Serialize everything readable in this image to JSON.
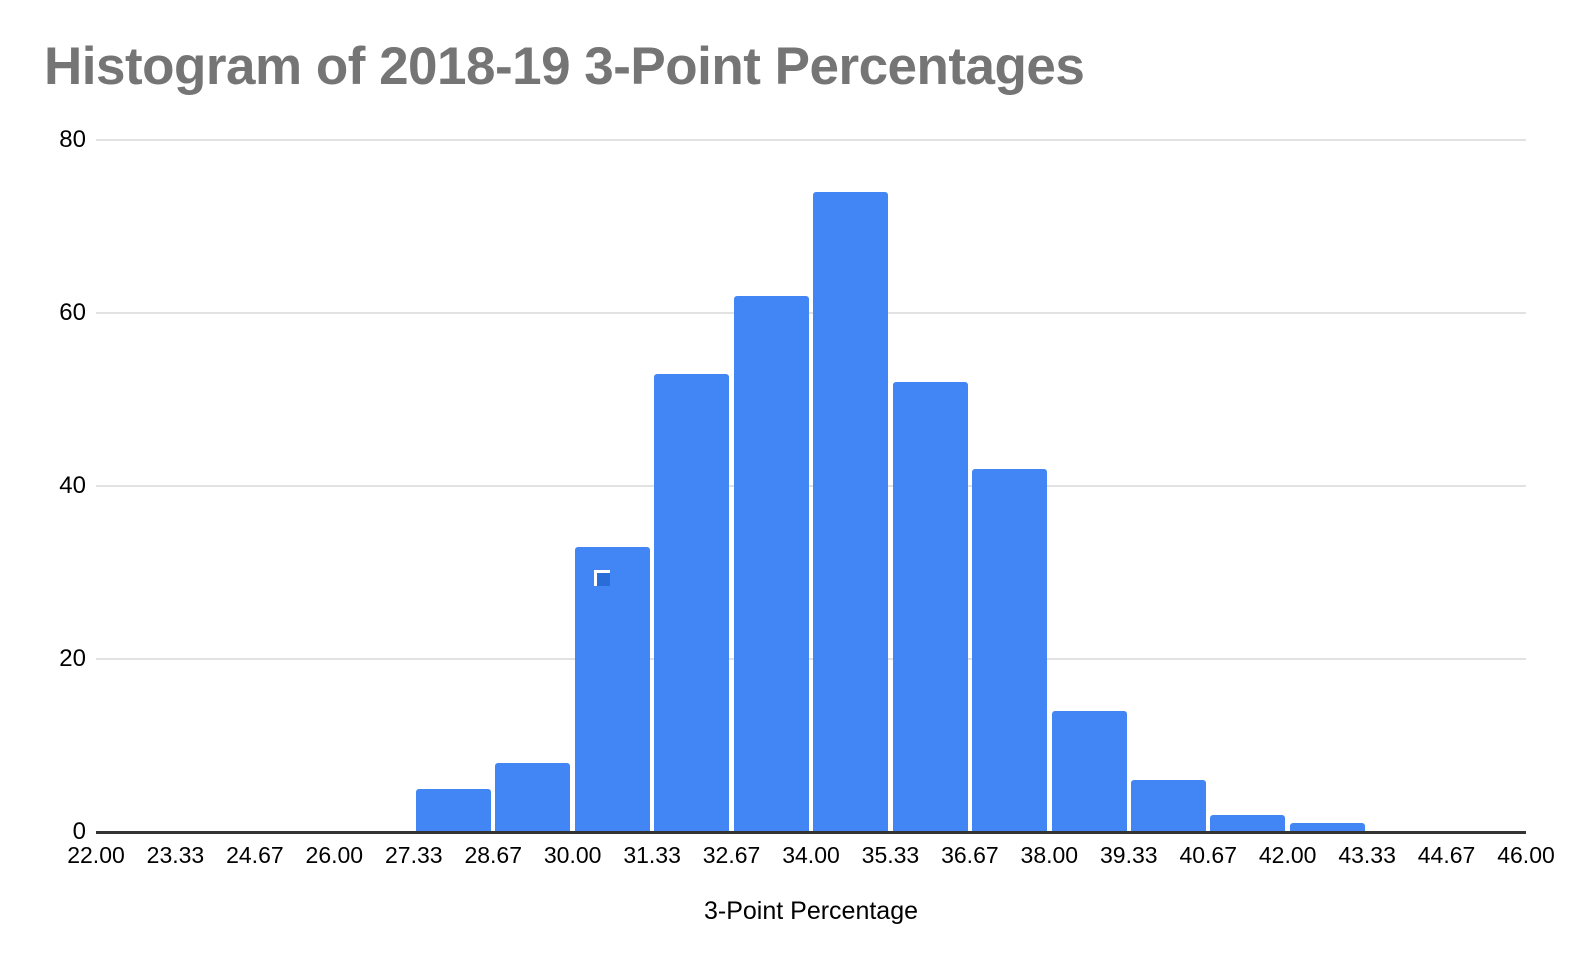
{
  "chart_data": {
    "type": "bar",
    "chart_kind": "histogram",
    "title": "Histogram of 2018-19 3-Point Percentages",
    "xlabel": "3-Point Percentage",
    "ylabel": "",
    "x_tick_labels": [
      "22.00",
      "23.33",
      "24.67",
      "26.00",
      "27.33",
      "28.67",
      "30.00",
      "31.33",
      "32.67",
      "34.00",
      "35.33",
      "36.67",
      "38.00",
      "39.33",
      "40.67",
      "42.00",
      "43.33",
      "44.67",
      "46.00"
    ],
    "y_tick_labels": [
      "0",
      "20",
      "40",
      "60",
      "80"
    ],
    "y_ticks": [
      0,
      20,
      40,
      60,
      80
    ],
    "ylim": [
      0,
      80
    ],
    "xlim": [
      22.0,
      46.0
    ],
    "bin_width": 1.33,
    "grid": true,
    "legend_position": "none",
    "bins": [
      {
        "from": "22.00",
        "to": "23.33",
        "count": 0
      },
      {
        "from": "23.33",
        "to": "24.67",
        "count": 0
      },
      {
        "from": "24.67",
        "to": "26.00",
        "count": 0
      },
      {
        "from": "26.00",
        "to": "27.33",
        "count": 0
      },
      {
        "from": "27.33",
        "to": "28.67",
        "count": 5
      },
      {
        "from": "28.67",
        "to": "30.00",
        "count": 8
      },
      {
        "from": "30.00",
        "to": "31.33",
        "count": 33
      },
      {
        "from": "31.33",
        "to": "32.67",
        "count": 53
      },
      {
        "from": "32.67",
        "to": "34.00",
        "count": 62
      },
      {
        "from": "34.00",
        "to": "35.33",
        "count": 74
      },
      {
        "from": "35.33",
        "to": "36.67",
        "count": 52
      },
      {
        "from": "36.67",
        "to": "38.00",
        "count": 42
      },
      {
        "from": "38.00",
        "to": "39.33",
        "count": 14
      },
      {
        "from": "39.33",
        "to": "40.67",
        "count": 6
      },
      {
        "from": "40.67",
        "to": "42.00",
        "count": 2
      },
      {
        "from": "42.00",
        "to": "43.33",
        "count": 1
      },
      {
        "from": "43.33",
        "to": "44.67",
        "count": 0
      },
      {
        "from": "44.67",
        "to": "46.00",
        "count": 0
      }
    ]
  },
  "artifacts": {
    "selection_cursor": {
      "description": "small square cursor marker overlaid on the 30.00-31.33 bar",
      "on_bin": "30.00-31.33"
    }
  },
  "colors": {
    "background": "#ffffff",
    "title": "#757575",
    "axis_text": "#000000",
    "gridline": "#e2e2e2",
    "baseline": "#333333",
    "bar": "#4285f4",
    "cursor_fill": "#2a6dd8",
    "cursor_border": "#ffffff"
  }
}
